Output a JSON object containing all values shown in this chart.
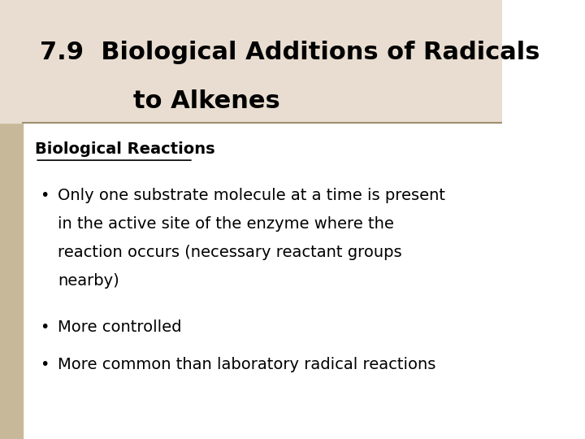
{
  "title_line1": "7.9  Biological Additions of Radicals",
  "title_line2": "to Alkenes",
  "section_header": "Biological Reactions",
  "bullet1_lines": [
    "Only one substrate molecule at a time is present",
    "in the active site of the enzyme where the",
    "reaction occurs (necessary reactant groups",
    "nearby)"
  ],
  "bullet2": "More controlled",
  "bullet3": "More common than laboratory radical reactions",
  "bg_color": "#ffffff",
  "left_bar_color": "#c8b89a",
  "title_bg_color": "#e8ddd0",
  "divider_color": "#a09070",
  "text_color": "#000000",
  "title_fontsize": 22,
  "body_fontsize": 14,
  "header_fontsize": 14
}
